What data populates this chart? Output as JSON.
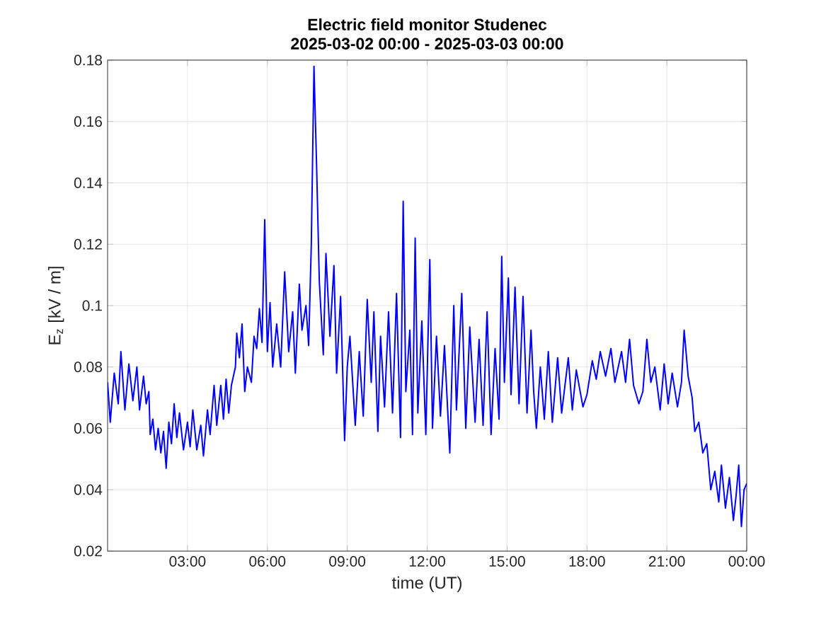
{
  "chart_data": {
    "type": "line",
    "title": "Electric field monitor Studenec",
    "subtitle": "2025-03-02 00:00 - 2025-03-03 00:00",
    "xlabel": "time (UT)",
    "ylabel": "E$_{z}$ [kV / m]",
    "color": "#0000ff",
    "line_style": "solid",
    "grid": true,
    "xlim": [
      0,
      24
    ],
    "ylim": [
      0.02,
      0.18
    ],
    "xticks": [
      {
        "value": 3,
        "label": "03:00"
      },
      {
        "value": 6,
        "label": "06:00"
      },
      {
        "value": 9,
        "label": "09:00"
      },
      {
        "value": 12,
        "label": "12:00"
      },
      {
        "value": 15,
        "label": "15:00"
      },
      {
        "value": 18,
        "label": "18:00"
      },
      {
        "value": 21,
        "label": "21:00"
      },
      {
        "value": 24,
        "label": "00:00"
      }
    ],
    "yticks": [
      0.02,
      0.04,
      0.06,
      0.08,
      0.1,
      0.12,
      0.14,
      0.16,
      0.18
    ],
    "x": [
      0.0,
      0.1,
      0.25,
      0.4,
      0.5,
      0.65,
      0.8,
      0.95,
      1.1,
      1.2,
      1.35,
      1.45,
      1.55,
      1.6,
      1.7,
      1.8,
      1.9,
      2.0,
      2.1,
      2.2,
      2.3,
      2.4,
      2.5,
      2.6,
      2.7,
      2.85,
      3.0,
      3.1,
      3.2,
      3.35,
      3.5,
      3.6,
      3.75,
      3.85,
      4.0,
      4.1,
      4.25,
      4.35,
      4.45,
      4.55,
      4.65,
      4.8,
      4.85,
      4.95,
      5.05,
      5.15,
      5.25,
      5.4,
      5.5,
      5.6,
      5.7,
      5.8,
      5.9,
      6.0,
      6.1,
      6.2,
      6.35,
      6.5,
      6.65,
      6.8,
      6.95,
      7.05,
      7.2,
      7.3,
      7.45,
      7.55,
      7.65,
      7.75,
      7.85,
      7.95,
      8.1,
      8.2,
      8.35,
      8.5,
      8.6,
      8.75,
      8.9,
      9.0,
      9.1,
      9.3,
      9.45,
      9.6,
      9.75,
      9.9,
      10.0,
      10.15,
      10.25,
      10.4,
      10.55,
      10.7,
      10.85,
      11.0,
      11.1,
      11.2,
      11.35,
      11.45,
      11.55,
      11.65,
      11.8,
      11.95,
      12.1,
      12.2,
      12.35,
      12.5,
      12.65,
      12.85,
      13.0,
      13.1,
      13.3,
      13.45,
      13.6,
      13.8,
      13.95,
      14.1,
      14.25,
      14.4,
      14.55,
      14.7,
      14.8,
      14.9,
      15.05,
      15.15,
      15.3,
      15.45,
      15.6,
      15.75,
      15.9,
      16.0,
      16.1,
      16.25,
      16.4,
      16.55,
      16.7,
      16.9,
      17.05,
      17.3,
      17.45,
      17.6,
      17.85,
      18.0,
      18.2,
      18.35,
      18.5,
      18.7,
      18.9,
      19.05,
      19.3,
      19.45,
      19.6,
      19.75,
      19.95,
      20.1,
      20.25,
      20.4,
      20.55,
      20.75,
      20.9,
      21.05,
      21.2,
      21.4,
      21.55,
      21.65,
      21.8,
      21.95,
      22.05,
      22.2,
      22.35,
      22.5,
      22.65,
      22.8,
      22.95,
      23.05,
      23.2,
      23.35,
      23.5,
      23.6,
      23.7,
      23.8,
      23.9,
      24.0
    ],
    "values": [
      0.075,
      0.062,
      0.078,
      0.068,
      0.085,
      0.066,
      0.081,
      0.069,
      0.08,
      0.066,
      0.077,
      0.068,
      0.072,
      0.058,
      0.063,
      0.053,
      0.06,
      0.052,
      0.059,
      0.047,
      0.062,
      0.055,
      0.068,
      0.057,
      0.065,
      0.053,
      0.062,
      0.054,
      0.066,
      0.053,
      0.061,
      0.051,
      0.066,
      0.058,
      0.074,
      0.061,
      0.074,
      0.063,
      0.076,
      0.065,
      0.074,
      0.08,
      0.091,
      0.083,
      0.094,
      0.072,
      0.08,
      0.075,
      0.09,
      0.086,
      0.099,
      0.088,
      0.128,
      0.085,
      0.101,
      0.08,
      0.094,
      0.08,
      0.111,
      0.085,
      0.098,
      0.078,
      0.107,
      0.092,
      0.1,
      0.087,
      0.12,
      0.178,
      0.145,
      0.108,
      0.084,
      0.117,
      0.09,
      0.113,
      0.078,
      0.103,
      0.056,
      0.08,
      0.09,
      0.061,
      0.085,
      0.064,
      0.102,
      0.075,
      0.098,
      0.059,
      0.09,
      0.067,
      0.098,
      0.065,
      0.104,
      0.057,
      0.134,
      0.072,
      0.092,
      0.058,
      0.122,
      0.065,
      0.095,
      0.058,
      0.115,
      0.06,
      0.09,
      0.064,
      0.087,
      0.052,
      0.1,
      0.066,
      0.104,
      0.06,
      0.093,
      0.062,
      0.089,
      0.061,
      0.098,
      0.058,
      0.086,
      0.063,
      0.116,
      0.075,
      0.109,
      0.071,
      0.106,
      0.068,
      0.103,
      0.065,
      0.092,
      0.072,
      0.06,
      0.08,
      0.063,
      0.085,
      0.062,
      0.083,
      0.065,
      0.083,
      0.066,
      0.079,
      0.067,
      0.071,
      0.082,
      0.076,
      0.085,
      0.077,
      0.086,
      0.075,
      0.085,
      0.075,
      0.089,
      0.074,
      0.068,
      0.072,
      0.089,
      0.075,
      0.08,
      0.066,
      0.081,
      0.068,
      0.078,
      0.067,
      0.075,
      0.092,
      0.077,
      0.07,
      0.059,
      0.062,
      0.052,
      0.055,
      0.04,
      0.046,
      0.036,
      0.048,
      0.034,
      0.044,
      0.03,
      0.038,
      0.048,
      0.028,
      0.04,
      0.042
    ]
  }
}
